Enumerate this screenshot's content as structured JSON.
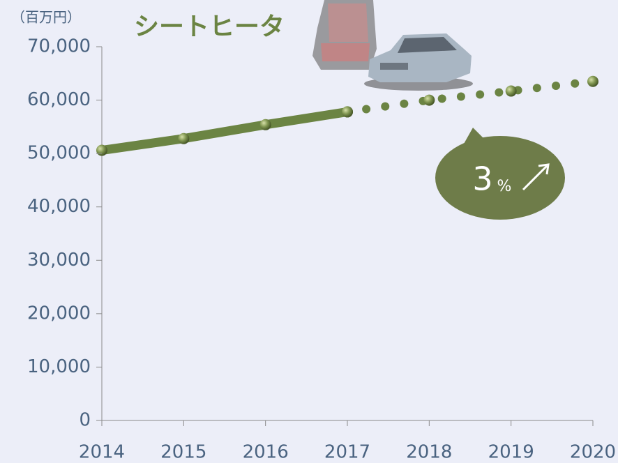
{
  "chart_data": {
    "type": "line",
    "title": "シートヒータ",
    "unit_label": "（百万円）",
    "annotation": {
      "value": "3",
      "unit": "%"
    },
    "categories": [
      "2014",
      "2015",
      "2016",
      "2017",
      "2018",
      "2019",
      "2020"
    ],
    "series": [
      {
        "color": "#6b8443",
        "style": "solid",
        "values": [
          50600,
          52800,
          55400,
          57800,
          null,
          null,
          null
        ]
      },
      {
        "color": "#6b8443",
        "style": "dotted",
        "values": [
          null,
          null,
          null,
          57800,
          60000,
          61700,
          63500
        ]
      }
    ],
    "ylim": [
      0,
      70000
    ],
    "yticks": [
      {
        "value": 0,
        "label": "0"
      },
      {
        "value": 10000,
        "label": "10,000"
      },
      {
        "value": 20000,
        "label": "20,000"
      },
      {
        "value": 30000,
        "label": "30,000"
      },
      {
        "value": 40000,
        "label": "40,000"
      },
      {
        "value": 50000,
        "label": "50,000"
      },
      {
        "value": 60000,
        "label": "60,000"
      },
      {
        "value": 70000,
        "label": "70,000"
      }
    ]
  }
}
